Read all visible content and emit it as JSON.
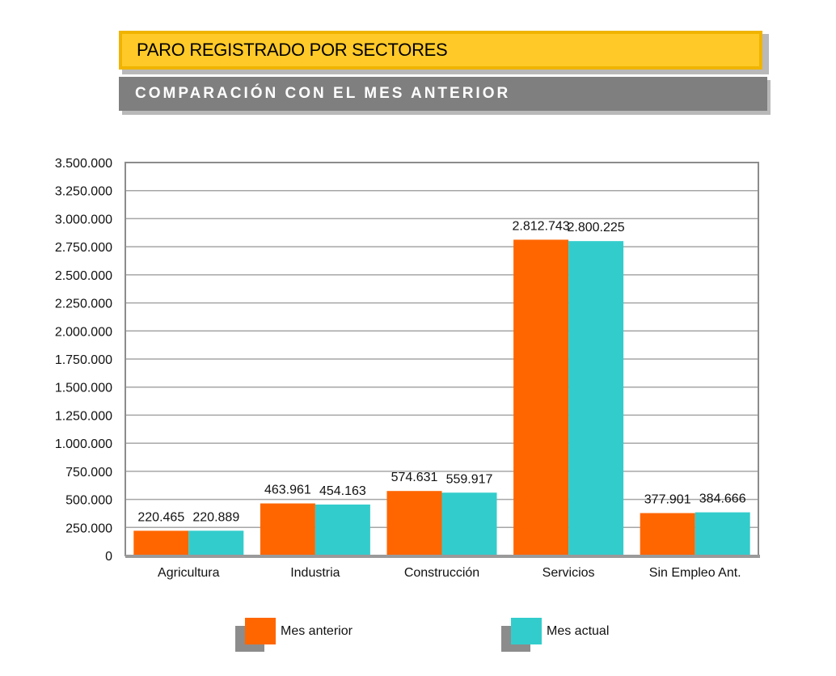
{
  "header": {
    "title": "PARO REGISTRADO POR SECTORES",
    "subtitle": "COMPARACIÓN CON EL MES ANTERIOR"
  },
  "colors": {
    "mes_anterior": "#ff6600",
    "mes_actual": "#33cccc",
    "title_bg": "#ffca28",
    "subtitle_bg": "#7f7f7f"
  },
  "chart_data": {
    "type": "bar",
    "categories": [
      "Agricultura",
      "Industria",
      "Construcción",
      "Servicios",
      "Sin Empleo Ant."
    ],
    "series": [
      {
        "name": "Mes anterior",
        "values": [
          220465,
          463961,
          574631,
          2812743,
          377901
        ],
        "labels": [
          "220.465",
          "463.961",
          "574.631",
          "2.812.743",
          "377.901"
        ]
      },
      {
        "name": "Mes actual",
        "values": [
          220889,
          454163,
          559917,
          2800225,
          384666
        ],
        "labels": [
          "220.889",
          "454.163",
          "559.917",
          "2.800.225",
          "384.666"
        ]
      }
    ],
    "ylim": [
      0,
      3500000
    ],
    "yticks": [
      0,
      250000,
      500000,
      750000,
      1000000,
      1250000,
      1500000,
      1750000,
      2000000,
      2250000,
      2500000,
      2750000,
      3000000,
      3250000,
      3500000
    ],
    "ytick_labels": [
      "0",
      "250.000",
      "500.000",
      "750.000",
      "1.000.000",
      "1.250.000",
      "1.500.000",
      "1.750.000",
      "2.000.000",
      "2.250.000",
      "2.500.000",
      "2.750.000",
      "3.000.000",
      "3.250.000",
      "3.500.000"
    ],
    "grid": true,
    "legend_position": "bottom",
    "xlabel": "",
    "ylabel": ""
  },
  "legend": {
    "items": [
      {
        "label": "Mes anterior"
      },
      {
        "label": "Mes actual"
      }
    ]
  }
}
